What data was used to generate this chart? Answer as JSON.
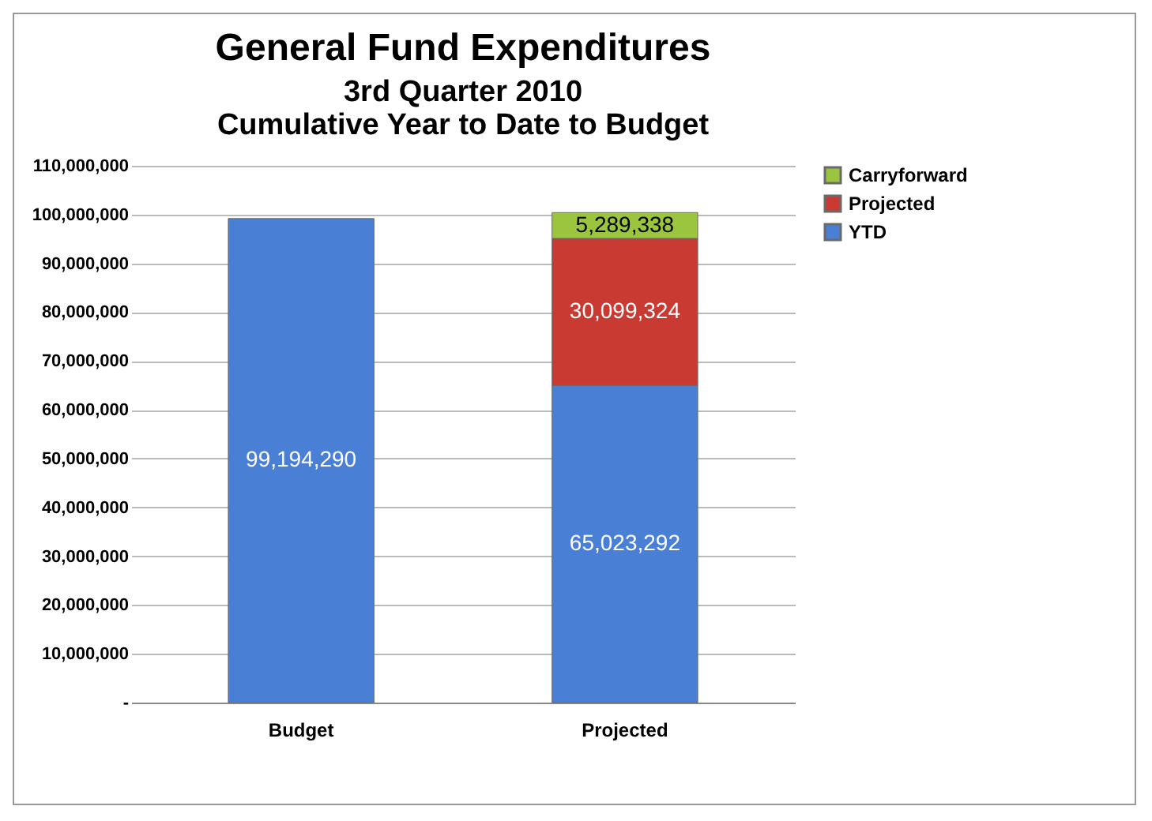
{
  "chart_data": {
    "type": "bar",
    "title": "General Fund Expenditures",
    "subtitle": "3rd Quarter 2010\nCumulative Year to Date to Budget",
    "categories": [
      "Budget",
      "Projected"
    ],
    "stacked": true,
    "series": [
      {
        "name": "YTD",
        "color": "#4a7fd6",
        "values": [
          99194290,
          65023292
        ],
        "value_labels": [
          "99,194,290",
          "65,023,292"
        ]
      },
      {
        "name": "Projected",
        "color": "#c93a32",
        "values": [
          null,
          30099324
        ],
        "value_labels": [
          null,
          "30,099,324"
        ]
      },
      {
        "name": "Carryforward",
        "color": "#9bc43f",
        "values": [
          null,
          5289338
        ],
        "value_labels": [
          null,
          "5,289,338"
        ]
      }
    ],
    "ylim": [
      0,
      110000000
    ],
    "yticks": [
      {
        "value": 0,
        "label": "-"
      },
      {
        "value": 10000000,
        "label": "10,000,000"
      },
      {
        "value": 20000000,
        "label": "20,000,000"
      },
      {
        "value": 30000000,
        "label": "30,000,000"
      },
      {
        "value": 40000000,
        "label": "40,000,000"
      },
      {
        "value": 50000000,
        "label": "50,000,000"
      },
      {
        "value": 60000000,
        "label": "60,000,000"
      },
      {
        "value": 70000000,
        "label": "70,000,000"
      },
      {
        "value": 80000000,
        "label": "80,000,000"
      },
      {
        "value": 90000000,
        "label": "90,000,000"
      },
      {
        "value": 100000000,
        "label": "100,000,000"
      },
      {
        "value": 110000000,
        "label": "110,000,000"
      }
    ],
    "grid": "y",
    "legend": "right"
  }
}
